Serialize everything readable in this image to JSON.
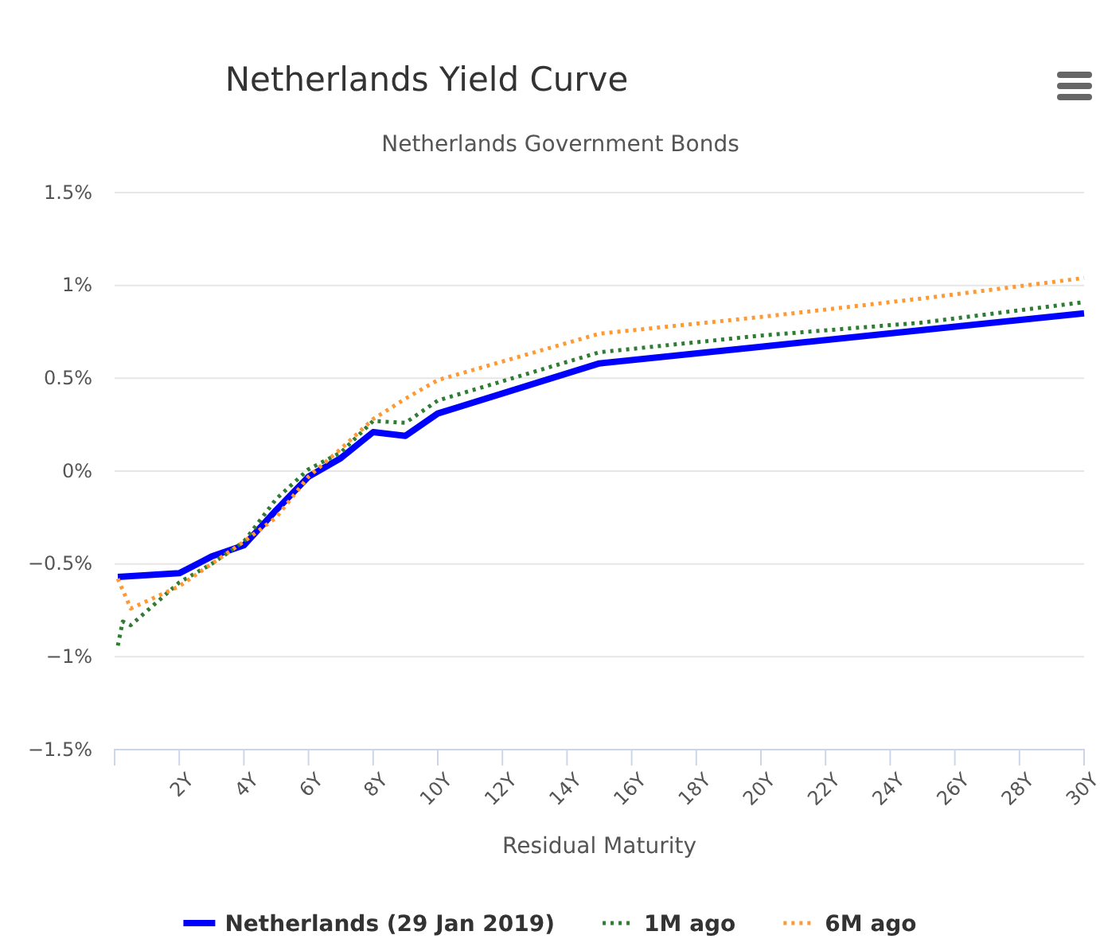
{
  "chart_data": {
    "type": "line",
    "title": "Netherlands Yield Curve",
    "subtitle": "Netherlands Government Bonds",
    "xlabel": "Residual Maturity",
    "xlim": [
      0,
      30
    ],
    "xticks": [
      {
        "value": 2,
        "label": "2Y"
      },
      {
        "value": 4,
        "label": "4Y"
      },
      {
        "value": 6,
        "label": "6Y"
      },
      {
        "value": 8,
        "label": "8Y"
      },
      {
        "value": 10,
        "label": "10Y"
      },
      {
        "value": 12,
        "label": "12Y"
      },
      {
        "value": 14,
        "label": "14Y"
      },
      {
        "value": 16,
        "label": "16Y"
      },
      {
        "value": 18,
        "label": "18Y"
      },
      {
        "value": 20,
        "label": "20Y"
      },
      {
        "value": 22,
        "label": "22Y"
      },
      {
        "value": 24,
        "label": "24Y"
      },
      {
        "value": 26,
        "label": "26Y"
      },
      {
        "value": 28,
        "label": "28Y"
      },
      {
        "value": 30,
        "label": "30Y"
      }
    ],
    "ylim": [
      -1.5,
      1.5
    ],
    "yticks": [
      {
        "value": -1.5,
        "label": "−1.5%"
      },
      {
        "value": -1,
        "label": "−1%"
      },
      {
        "value": -0.5,
        "label": "−0.5%"
      },
      {
        "value": 0,
        "label": "0%"
      },
      {
        "value": 0.5,
        "label": "0.5%"
      },
      {
        "value": 1,
        "label": "1%"
      },
      {
        "value": 1.5,
        "label": "1.5%"
      }
    ],
    "grid": "y",
    "legend": "bottom",
    "marker": "none",
    "series": [
      {
        "name": "Netherlands (29 Jan 2019)",
        "color": "#0000ff",
        "line_style": "solid",
        "x": [
          0.1,
          2,
          3,
          4,
          5,
          6,
          7,
          8,
          9,
          10,
          15,
          20,
          25,
          30
        ],
        "values": [
          -0.57,
          -0.55,
          -0.46,
          -0.4,
          -0.21,
          -0.03,
          0.07,
          0.21,
          0.19,
          0.31,
          0.58,
          0.67,
          0.76,
          0.85
        ]
      },
      {
        "name": "1M ago",
        "color": "#2e7d32",
        "line_style": "dotted",
        "x": [
          0.1,
          0.25,
          0.5,
          2,
          3,
          4,
          5,
          6,
          7,
          8,
          9,
          10,
          15,
          20,
          25,
          30
        ],
        "values": [
          -0.94,
          -0.81,
          -0.83,
          -0.6,
          -0.5,
          -0.38,
          -0.15,
          0.01,
          0.1,
          0.27,
          0.26,
          0.38,
          0.64,
          0.73,
          0.8,
          0.91
        ]
      },
      {
        "name": "6M ago",
        "color": "#ff9933",
        "line_style": "dotted",
        "x": [
          0.1,
          0.5,
          2,
          3,
          4,
          5,
          6,
          7,
          8,
          9,
          10,
          15,
          20,
          25,
          30
        ],
        "values": [
          -0.58,
          -0.74,
          -0.62,
          -0.5,
          -0.38,
          -0.25,
          -0.03,
          0.12,
          0.28,
          0.39,
          0.49,
          0.74,
          0.83,
          0.93,
          1.04
        ]
      }
    ]
  }
}
